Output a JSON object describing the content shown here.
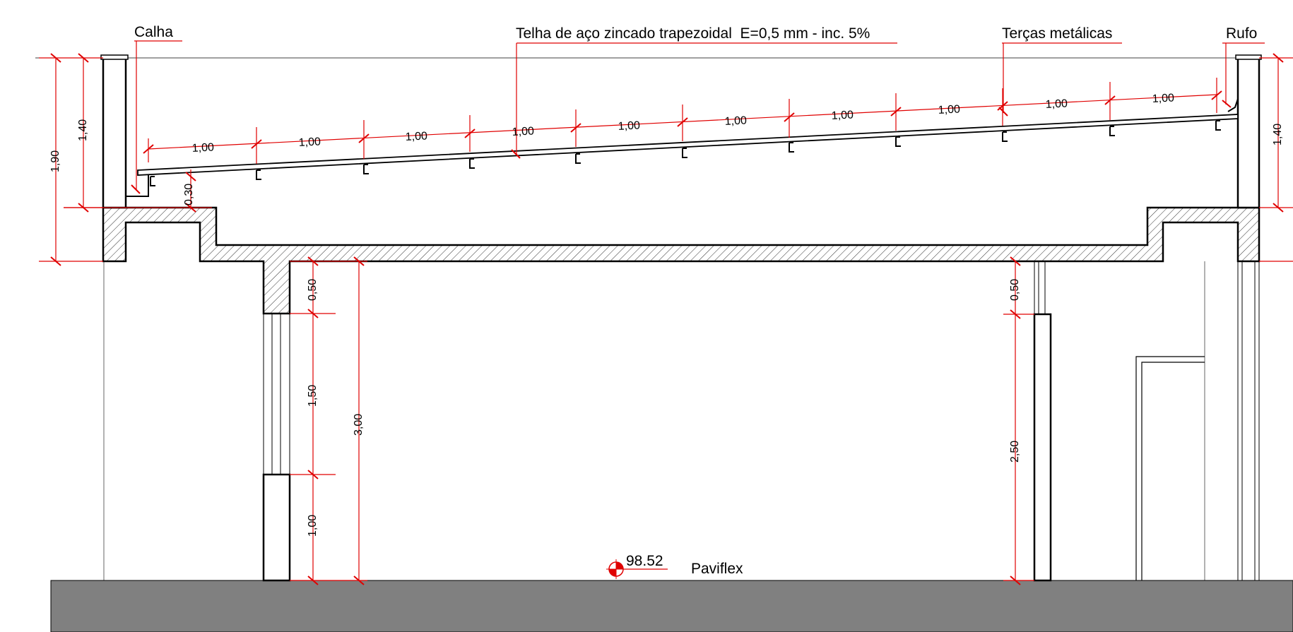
{
  "callouts": {
    "gutter": "Calha",
    "roof_tile": "Telha de aço zincado trapezoidal  E=0,5 mm - inc. 5%",
    "purlins": "Terças metálicas",
    "flashing": "Rufo"
  },
  "floor": {
    "level": "98.52",
    "finish": "Paviflex"
  },
  "dimensions": {
    "purlin_spacing": [
      "1,00",
      "1,00",
      "1,00",
      "1,00",
      "1,00",
      "1,00",
      "1,00",
      "1,00",
      "1,00",
      "1,00"
    ],
    "left_total_height": "1,90",
    "left_parapet_height": "1,40",
    "right_parapet_height": "1,40",
    "gutter_depth": "0,30",
    "left_beam": "0,50",
    "left_window": "1,50",
    "left_sill": "1,00",
    "ceiling_height": "3,00",
    "right_beam": "0,50",
    "right_opening": "2,50"
  },
  "colors": {
    "dimension_lines": "#e00000",
    "drawing_lines": "#000000",
    "ground_fill": "#808080"
  }
}
